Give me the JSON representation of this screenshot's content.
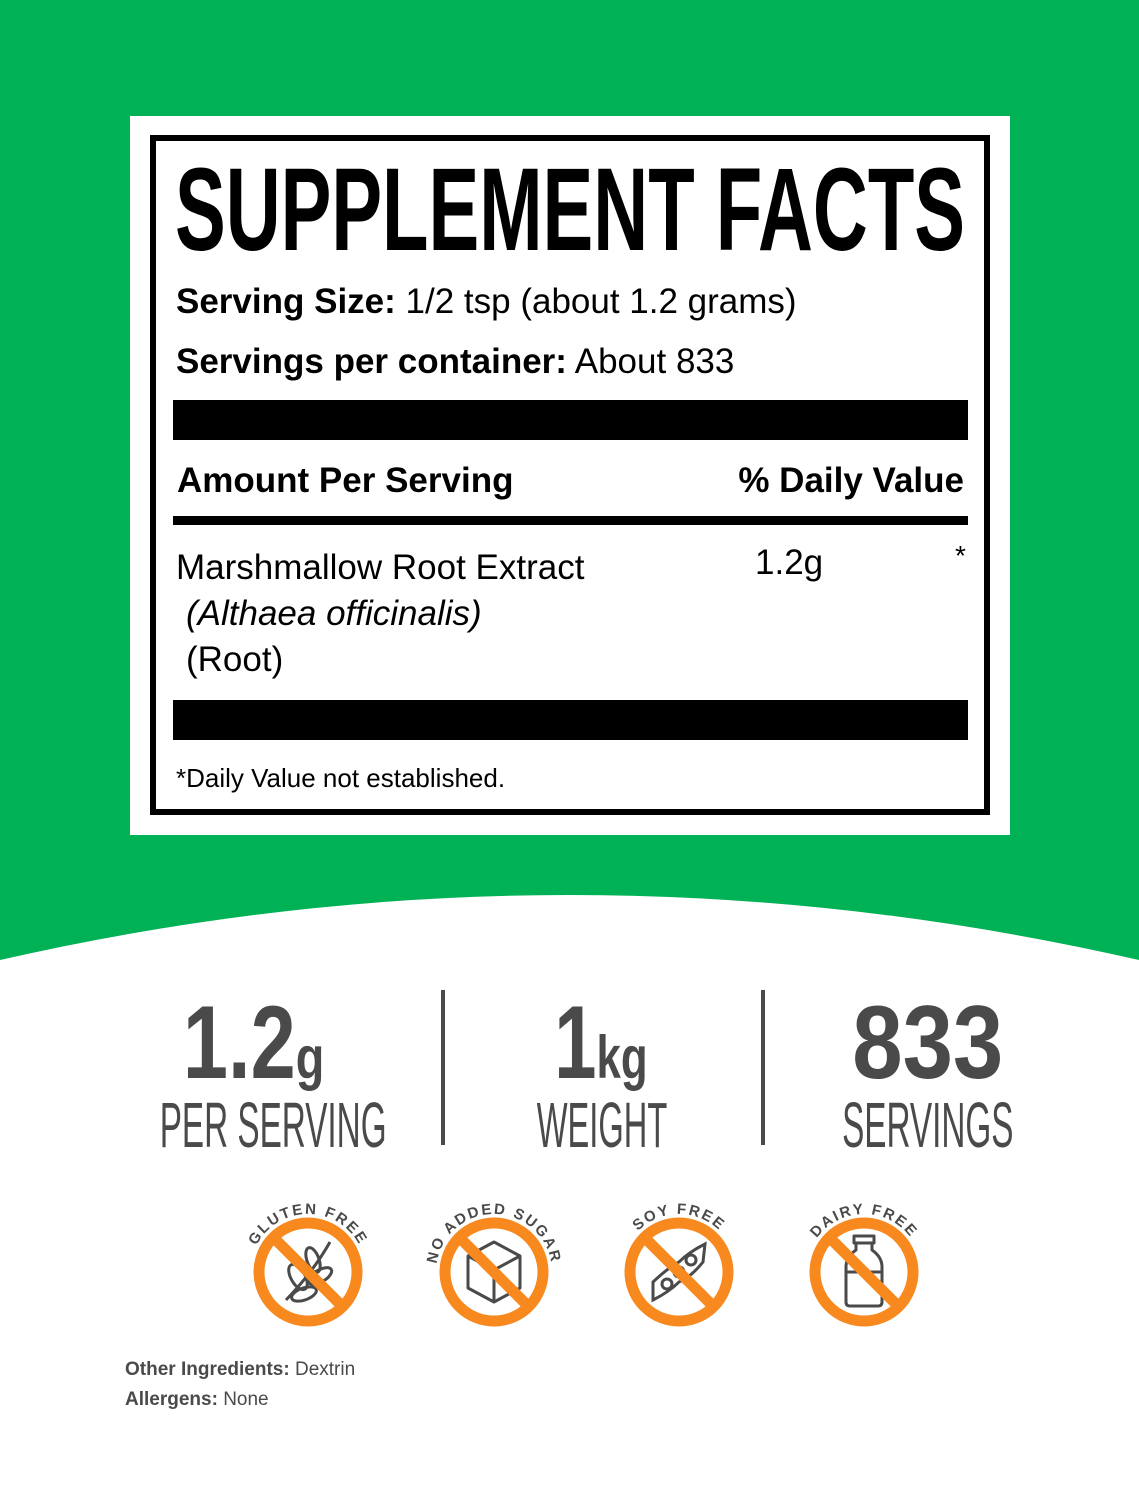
{
  "colors": {
    "green": "#00b156",
    "orange": "#f7891f",
    "gray": "#4a4a4a"
  },
  "label": {
    "title": "SUPPLEMENT FACTS",
    "serving_size_label": "Serving Size:",
    "serving_size_value": "1/2 tsp (about 1.2 grams)",
    "servings_label": "Servings per container:",
    "servings_value": "About 833",
    "amount_header": "Amount Per Serving",
    "dv_header": "% Daily Value",
    "ingredient": {
      "name": "Marshmallow Root Extract",
      "latin": "(Althaea officinalis)",
      "part": "(Root)",
      "amount": "1.2g",
      "dv": "*"
    },
    "footnote": "*Daily Value not established."
  },
  "stats": [
    {
      "value": "1.2",
      "unit": "g",
      "label": "PER SERVING"
    },
    {
      "value": "1",
      "unit": "kg",
      "label": "WEIGHT"
    },
    {
      "value": "833",
      "unit": "",
      "label": "SERVINGS"
    }
  ],
  "badges": [
    {
      "text": "GLUTEN FREE",
      "icon": "wheat-icon"
    },
    {
      "text": "NO ADDED SUGAR",
      "icon": "sugar-cube-icon"
    },
    {
      "text": "SOY FREE",
      "icon": "soybean-icon"
    },
    {
      "text": "DAIRY FREE",
      "icon": "milk-bottle-icon"
    }
  ],
  "other_ingredients_label": "Other Ingredients:",
  "other_ingredients_value": "Dextrin",
  "allergens_label": "Allergens:",
  "allergens_value": "None"
}
